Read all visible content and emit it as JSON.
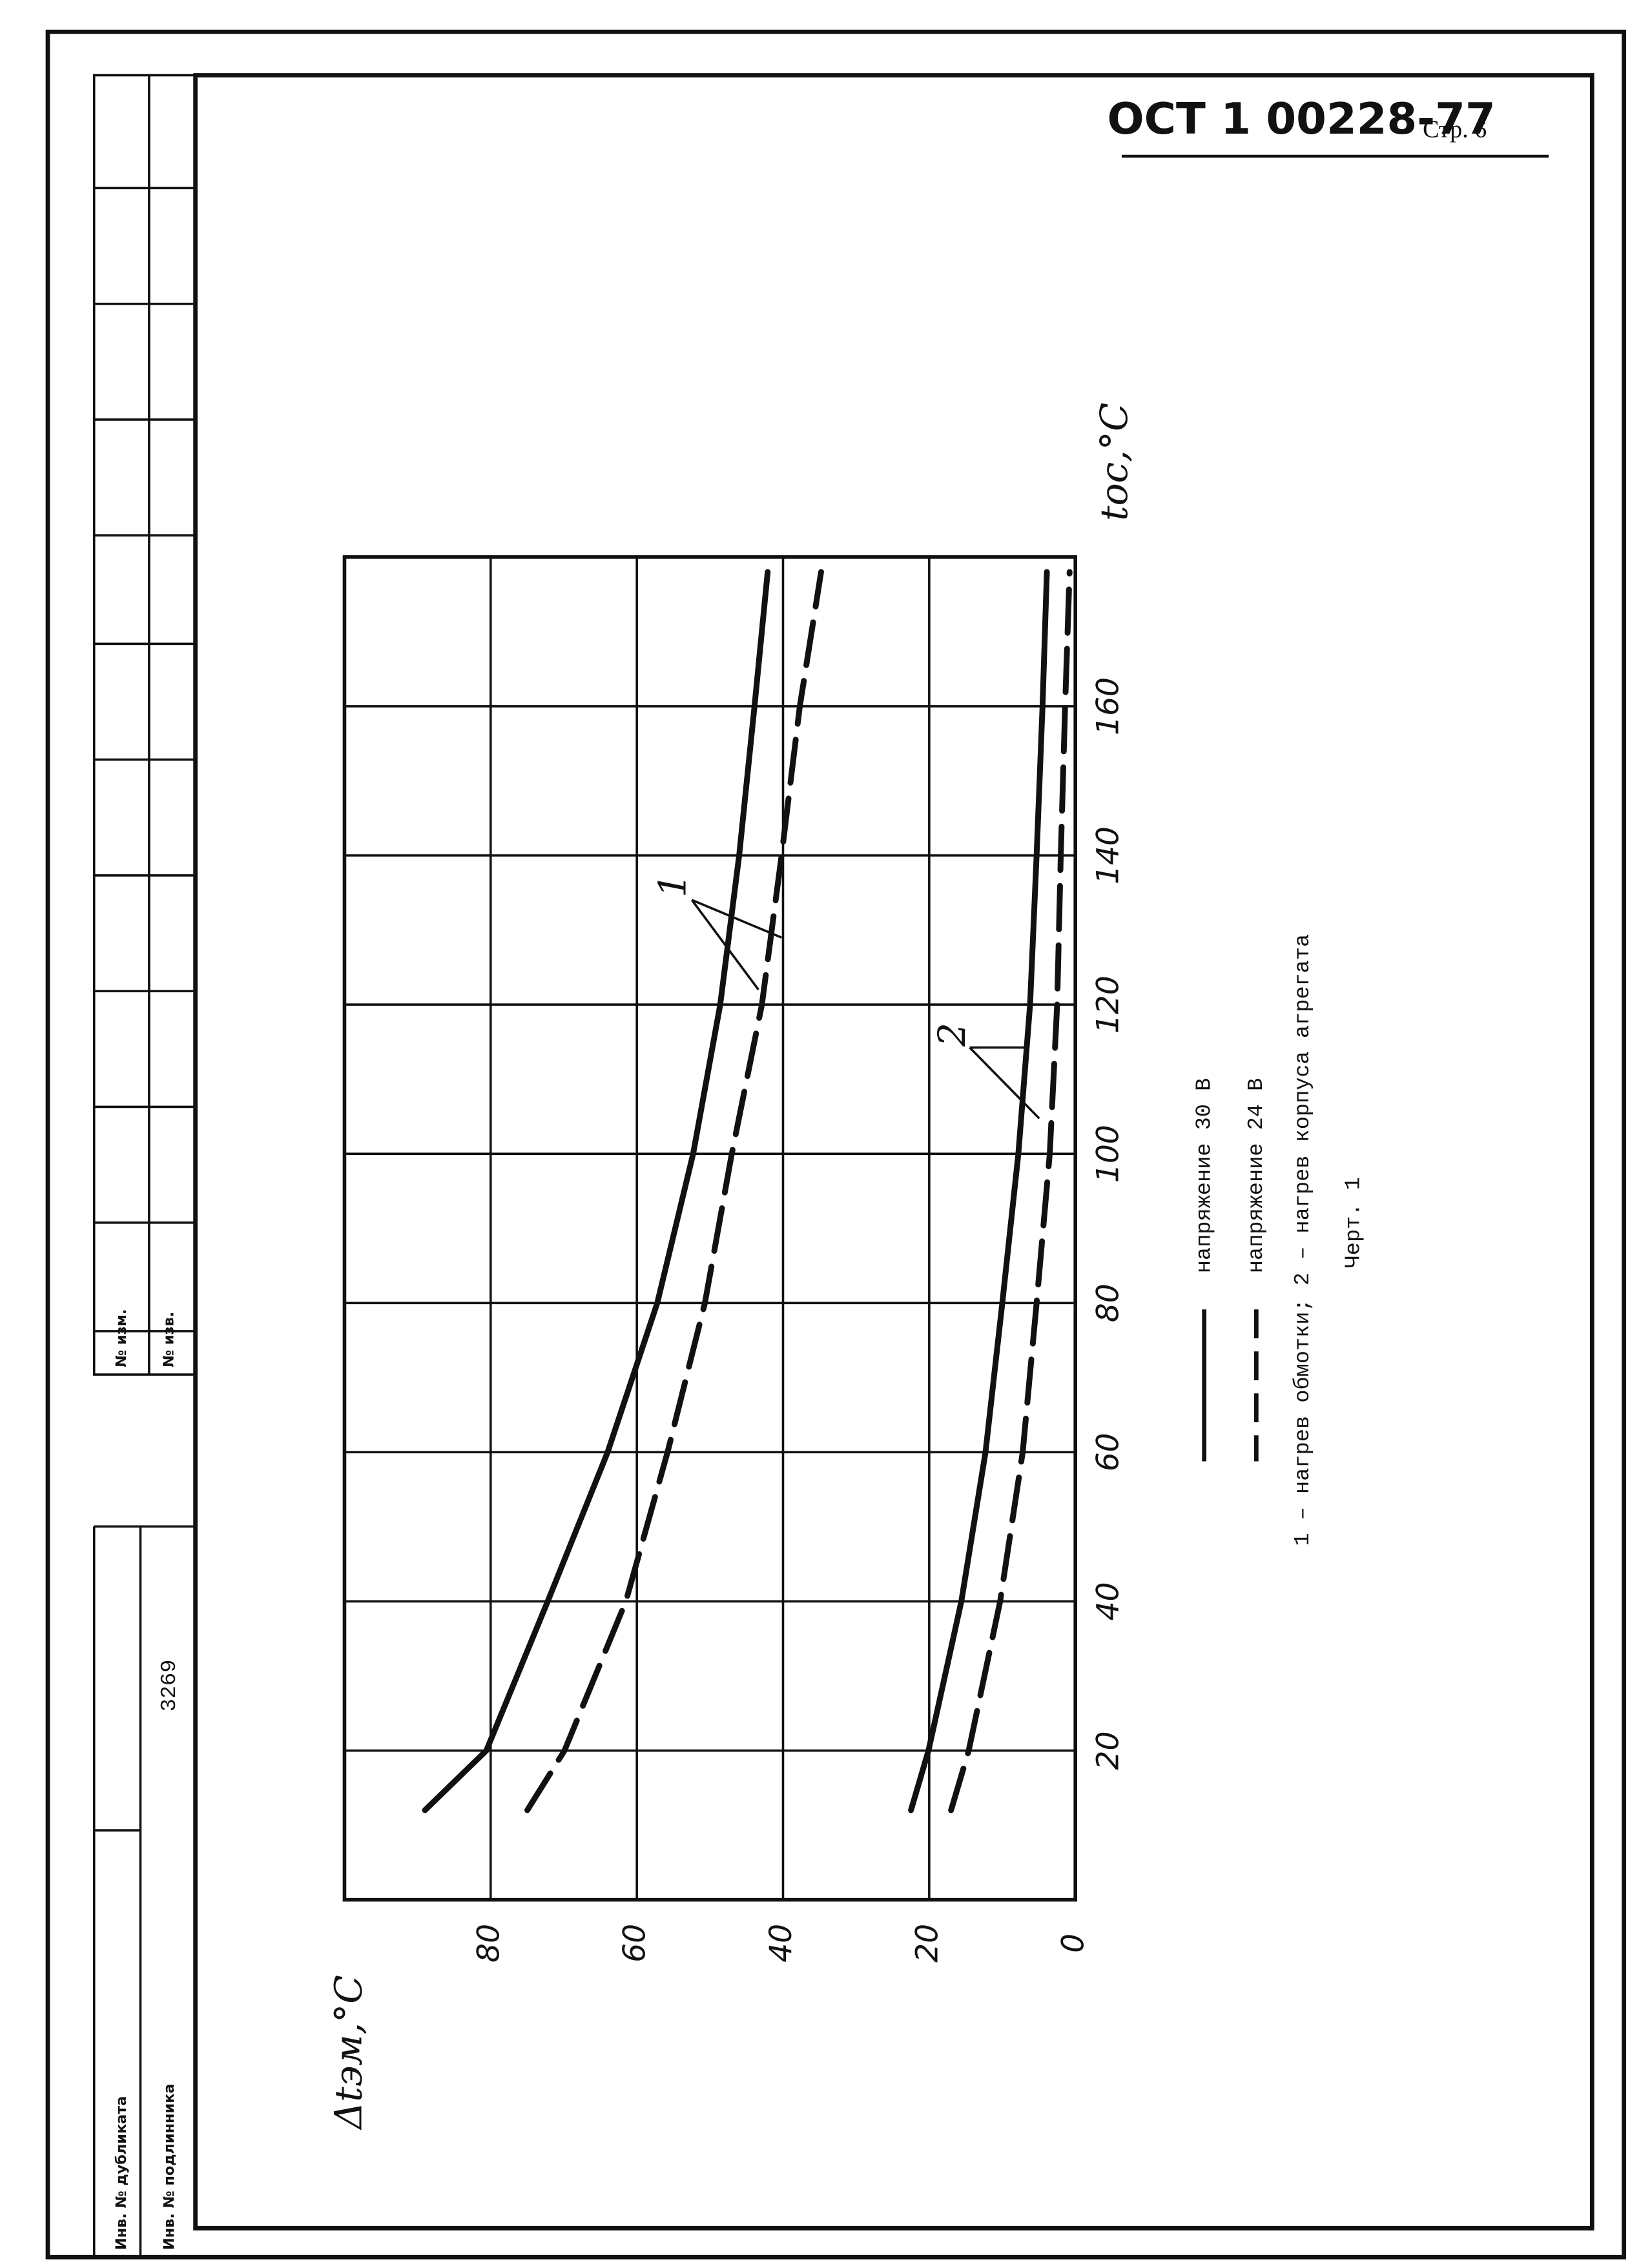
{
  "header": {
    "code": "ОСТ 1 00228-77",
    "page": "Стр. 6"
  },
  "stamp": {
    "duplicate": "Инв. № дубликата",
    "original": "Инв. № подлинника",
    "original_number": "3269",
    "change": "№ изм.",
    "notice": "№ изв."
  },
  "chart_data": {
    "type": "line",
    "x_label": "tос,°C",
    "y_label": "Δtэм,°C",
    "x": [
      12,
      20,
      40,
      60,
      80,
      100,
      120,
      140,
      160,
      178
    ],
    "xlim": [
      0,
      180
    ],
    "xticks": [
      20,
      40,
      60,
      80,
      100,
      120,
      140,
      160
    ],
    "ylim": [
      0,
      100
    ],
    "yticks": [
      0,
      20,
      40,
      60,
      80
    ],
    "grid": true,
    "color": "#111111",
    "series": [
      {
        "curve": "1",
        "dash": false,
        "values": [
          89,
          80.6,
          72.2,
          64,
          57.2,
          52.3,
          48.6,
          46,
          43.9,
          42.1
        ]
      },
      {
        "curve": "1",
        "dash": true,
        "values": [
          75,
          69.9,
          61.5,
          55.8,
          50.7,
          47,
          42.9,
          40.2,
          37.7,
          34.8
        ]
      },
      {
        "curve": "2",
        "dash": false,
        "values": [
          22.5,
          20.1,
          15.6,
          12.3,
          10,
          7.8,
          6.2,
          5.3,
          4.5,
          3.9
        ]
      },
      {
        "curve": "2",
        "dash": true,
        "values": [
          17,
          14.6,
          10.3,
          7.2,
          5.3,
          3.5,
          2.5,
          2,
          1.4,
          0.8
        ]
      }
    ],
    "legend": [
      "напряжение 30 В",
      "напряжение 24 В"
    ],
    "annotations": [
      "1",
      "2"
    ],
    "caption": "1 – нагрев обмотки; 2 – нагрев корпуса агрегата",
    "figure": "Черт. 1"
  }
}
